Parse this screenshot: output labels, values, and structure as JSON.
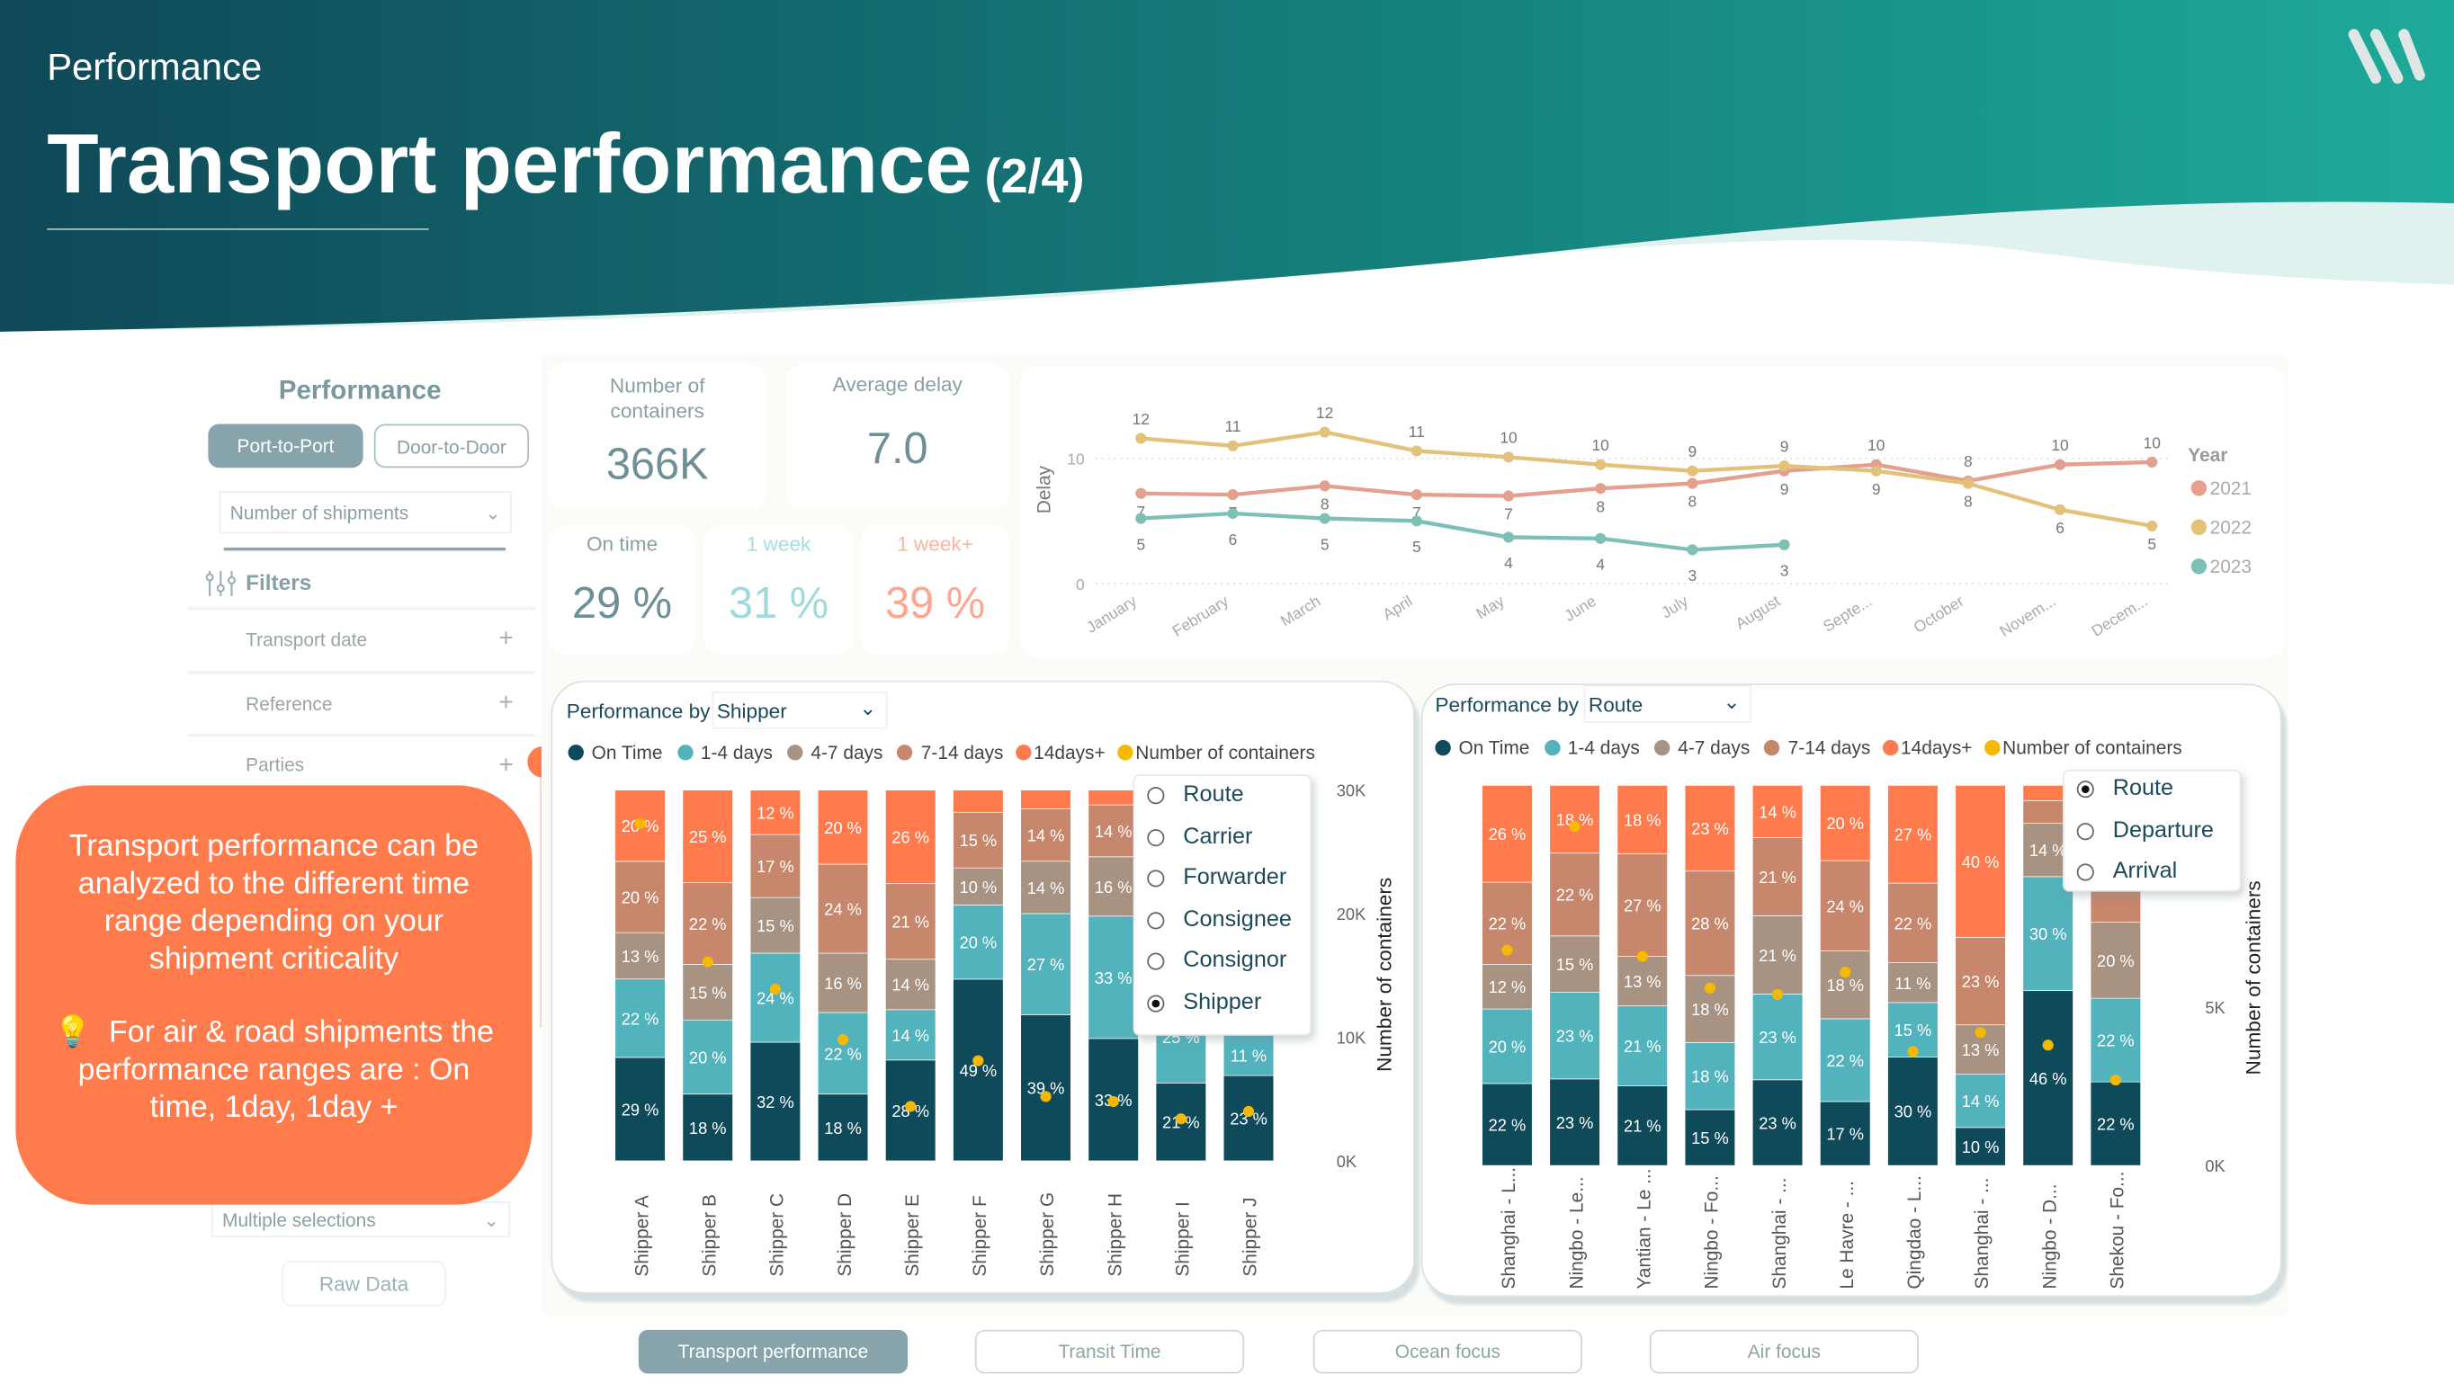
{
  "header": {
    "section": "Performance",
    "title": "Transport performance",
    "page": "(2/4)"
  },
  "colors": {
    "header_dark": "#0f4858",
    "header_light": "#1eaa99",
    "accent_orange": "#ff7b4b",
    "on_time": "#0f4a5a",
    "d1_4": "#52b3bd",
    "d4_7": "#a89282",
    "d7_14": "#c6876d",
    "d14_plus": "#ff7b4d",
    "containers": "#f7b900",
    "y2021": "#e4a08e",
    "y2022": "#e2c27a",
    "y2023": "#7fc0b6"
  },
  "logo": {
    "icon": "brand-logo-icon"
  },
  "sidebar": {
    "title": "Performance",
    "toggle": [
      {
        "label": "Port-to-Port",
        "active": true
      },
      {
        "label": "Door-to-Door",
        "active": false
      }
    ],
    "measure_dropdown": "Number of shipments",
    "filters_label": "Filters",
    "filters": [
      {
        "label": "Transport date"
      },
      {
        "label": "Reference"
      },
      {
        "label": "Parties"
      }
    ],
    "multiple_selections": "Multiple selections",
    "raw_data": "Raw Data"
  },
  "callout": {
    "text1": "Transport performance can be analyzed to the different time range depending on your shipment criticality",
    "icon": "lightbulb-icon",
    "bulb": "💡",
    "text2": "For air & road shipments the performance ranges are : On time, 1day, 1day +"
  },
  "kpis": {
    "containers": {
      "label": "Number of containers",
      "value": "366K"
    },
    "avg_delay": {
      "label": "Average delay",
      "value": "7.0"
    },
    "on_time": {
      "label": "On time",
      "value": "29 %"
    },
    "one_week": {
      "label": "1 week",
      "value": "31 %"
    },
    "one_week_plus": {
      "label": "1 week+",
      "value": "39 %"
    }
  },
  "chart_data": [
    {
      "type": "line",
      "ylabel": "Delay",
      "legend_title": "Year",
      "legend_position": "right",
      "categories": [
        "January",
        "February",
        "March",
        "April",
        "May",
        "June",
        "July",
        "August",
        "Septe...",
        "October",
        "Novem...",
        "Decem..."
      ],
      "y_ticks": [
        0,
        10
      ],
      "grid": true,
      "series": [
        {
          "name": "2021",
          "values": [
            7.2,
            7.1,
            7.8,
            7.1,
            7.0,
            7.6,
            8.0,
            9.0,
            9.5,
            8.2,
            9.5,
            9.7
          ]
        },
        {
          "name": "2022",
          "values": [
            11.6,
            11.0,
            12.1,
            10.6,
            10.1,
            9.5,
            9.0,
            9.4,
            9.0,
            8.0,
            5.9,
            4.6
          ]
        },
        {
          "name": "2023",
          "values": [
            5.2,
            5.6,
            5.2,
            5.0,
            3.7,
            3.6,
            2.7,
            3.1,
            null,
            null,
            null,
            null
          ]
        }
      ]
    },
    {
      "type": "bar",
      "stacked": true,
      "title_prefix": "Performance by",
      "dimension": "Shipper",
      "selector_options": [
        "Route",
        "Carrier",
        "Forwarder",
        "Consignee",
        "Consignor",
        "Shipper"
      ],
      "selected_option": "Shipper",
      "categories": [
        "Shipper A",
        "Shipper B",
        "Shipper C",
        "Shipper D",
        "Shipper E",
        "Shipper F",
        "Shipper G",
        "Shipper H",
        "Shipper I",
        "Shipper J"
      ],
      "series": [
        {
          "name": "On Time",
          "values": [
            29,
            18,
            32,
            18,
            28,
            49,
            39,
            33,
            21,
            23
          ]
        },
        {
          "name": "1-4 days",
          "values": [
            22,
            20,
            24,
            22,
            14,
            20,
            27,
            33,
            25,
            11
          ]
        },
        {
          "name": "4-7 days",
          "values": [
            13,
            15,
            15,
            16,
            14,
            10,
            14,
            16,
            18,
            20
          ]
        },
        {
          "name": "7-14 days",
          "values": [
            20,
            22,
            17,
            24,
            21,
            15,
            14,
            14,
            20,
            26
          ]
        },
        {
          "name": "14days+",
          "values": [
            20,
            25,
            12,
            20,
            26,
            6,
            5,
            4,
            16,
            20
          ]
        }
      ],
      "containers": {
        "name": "Number of containers",
        "unit": "K",
        "values": [
          27.3,
          16.1,
          13.9,
          9.8,
          4.4,
          8.1,
          5.2,
          4.8,
          3.4,
          4.0
        ]
      },
      "y2label": "Number of containers",
      "y2_ticks": [
        {
          "label": "0K",
          "value": 0
        },
        {
          "label": "10K",
          "value": 10
        },
        {
          "label": "20K",
          "value": 20
        },
        {
          "label": "30K",
          "value": 30
        }
      ],
      "y2lim": [
        0,
        30
      ]
    },
    {
      "type": "bar",
      "stacked": true,
      "title_prefix": "Performance by",
      "dimension": "Route",
      "selector_options": [
        "Route",
        "Departure",
        "Arrival"
      ],
      "selected_option": "Route",
      "categories": [
        "Shanghai - L...",
        "Ningbo - Le...",
        "Yantian - Le ...",
        "Ningbo - Fo...",
        "Shanghai - ...",
        "Le Havre - ...",
        "Qingdao - L...",
        "Shanghai - ...",
        "Ningbo - D...",
        "Shekou - Fo..."
      ],
      "series": [
        {
          "name": "On Time",
          "values": [
            22,
            23,
            21,
            15,
            23,
            17,
            30,
            10,
            46,
            22
          ]
        },
        {
          "name": "1-4 days",
          "values": [
            20,
            23,
            21,
            18,
            23,
            22,
            15,
            14,
            30,
            22
          ]
        },
        {
          "name": "4-7 days",
          "values": [
            12,
            15,
            13,
            18,
            21,
            18,
            11,
            13,
            14,
            20
          ]
        },
        {
          "name": "7-14 days",
          "values": [
            22,
            22,
            27,
            28,
            21,
            24,
            22,
            23,
            6,
            22
          ]
        },
        {
          "name": "14days+",
          "values": [
            26,
            18,
            18,
            23,
            14,
            20,
            27,
            40,
            4,
            14
          ]
        }
      ],
      "containers": {
        "name": "Number of containers",
        "unit": "K",
        "values": [
          6.8,
          10.7,
          6.6,
          5.6,
          5.4,
          6.1,
          3.6,
          4.2,
          3.8,
          2.7
        ]
      },
      "y2label": "Number of containers",
      "y2_ticks": [
        {
          "label": "0K",
          "value": 0
        },
        {
          "label": "5K",
          "value": 5
        }
      ],
      "y2lim": [
        0,
        12
      ]
    }
  ],
  "bottom_tabs": [
    {
      "label": "Transport performance",
      "active": true
    },
    {
      "label": "Transit Time",
      "active": false
    },
    {
      "label": "Ocean focus",
      "active": false
    },
    {
      "label": "Air focus",
      "active": false
    }
  ]
}
